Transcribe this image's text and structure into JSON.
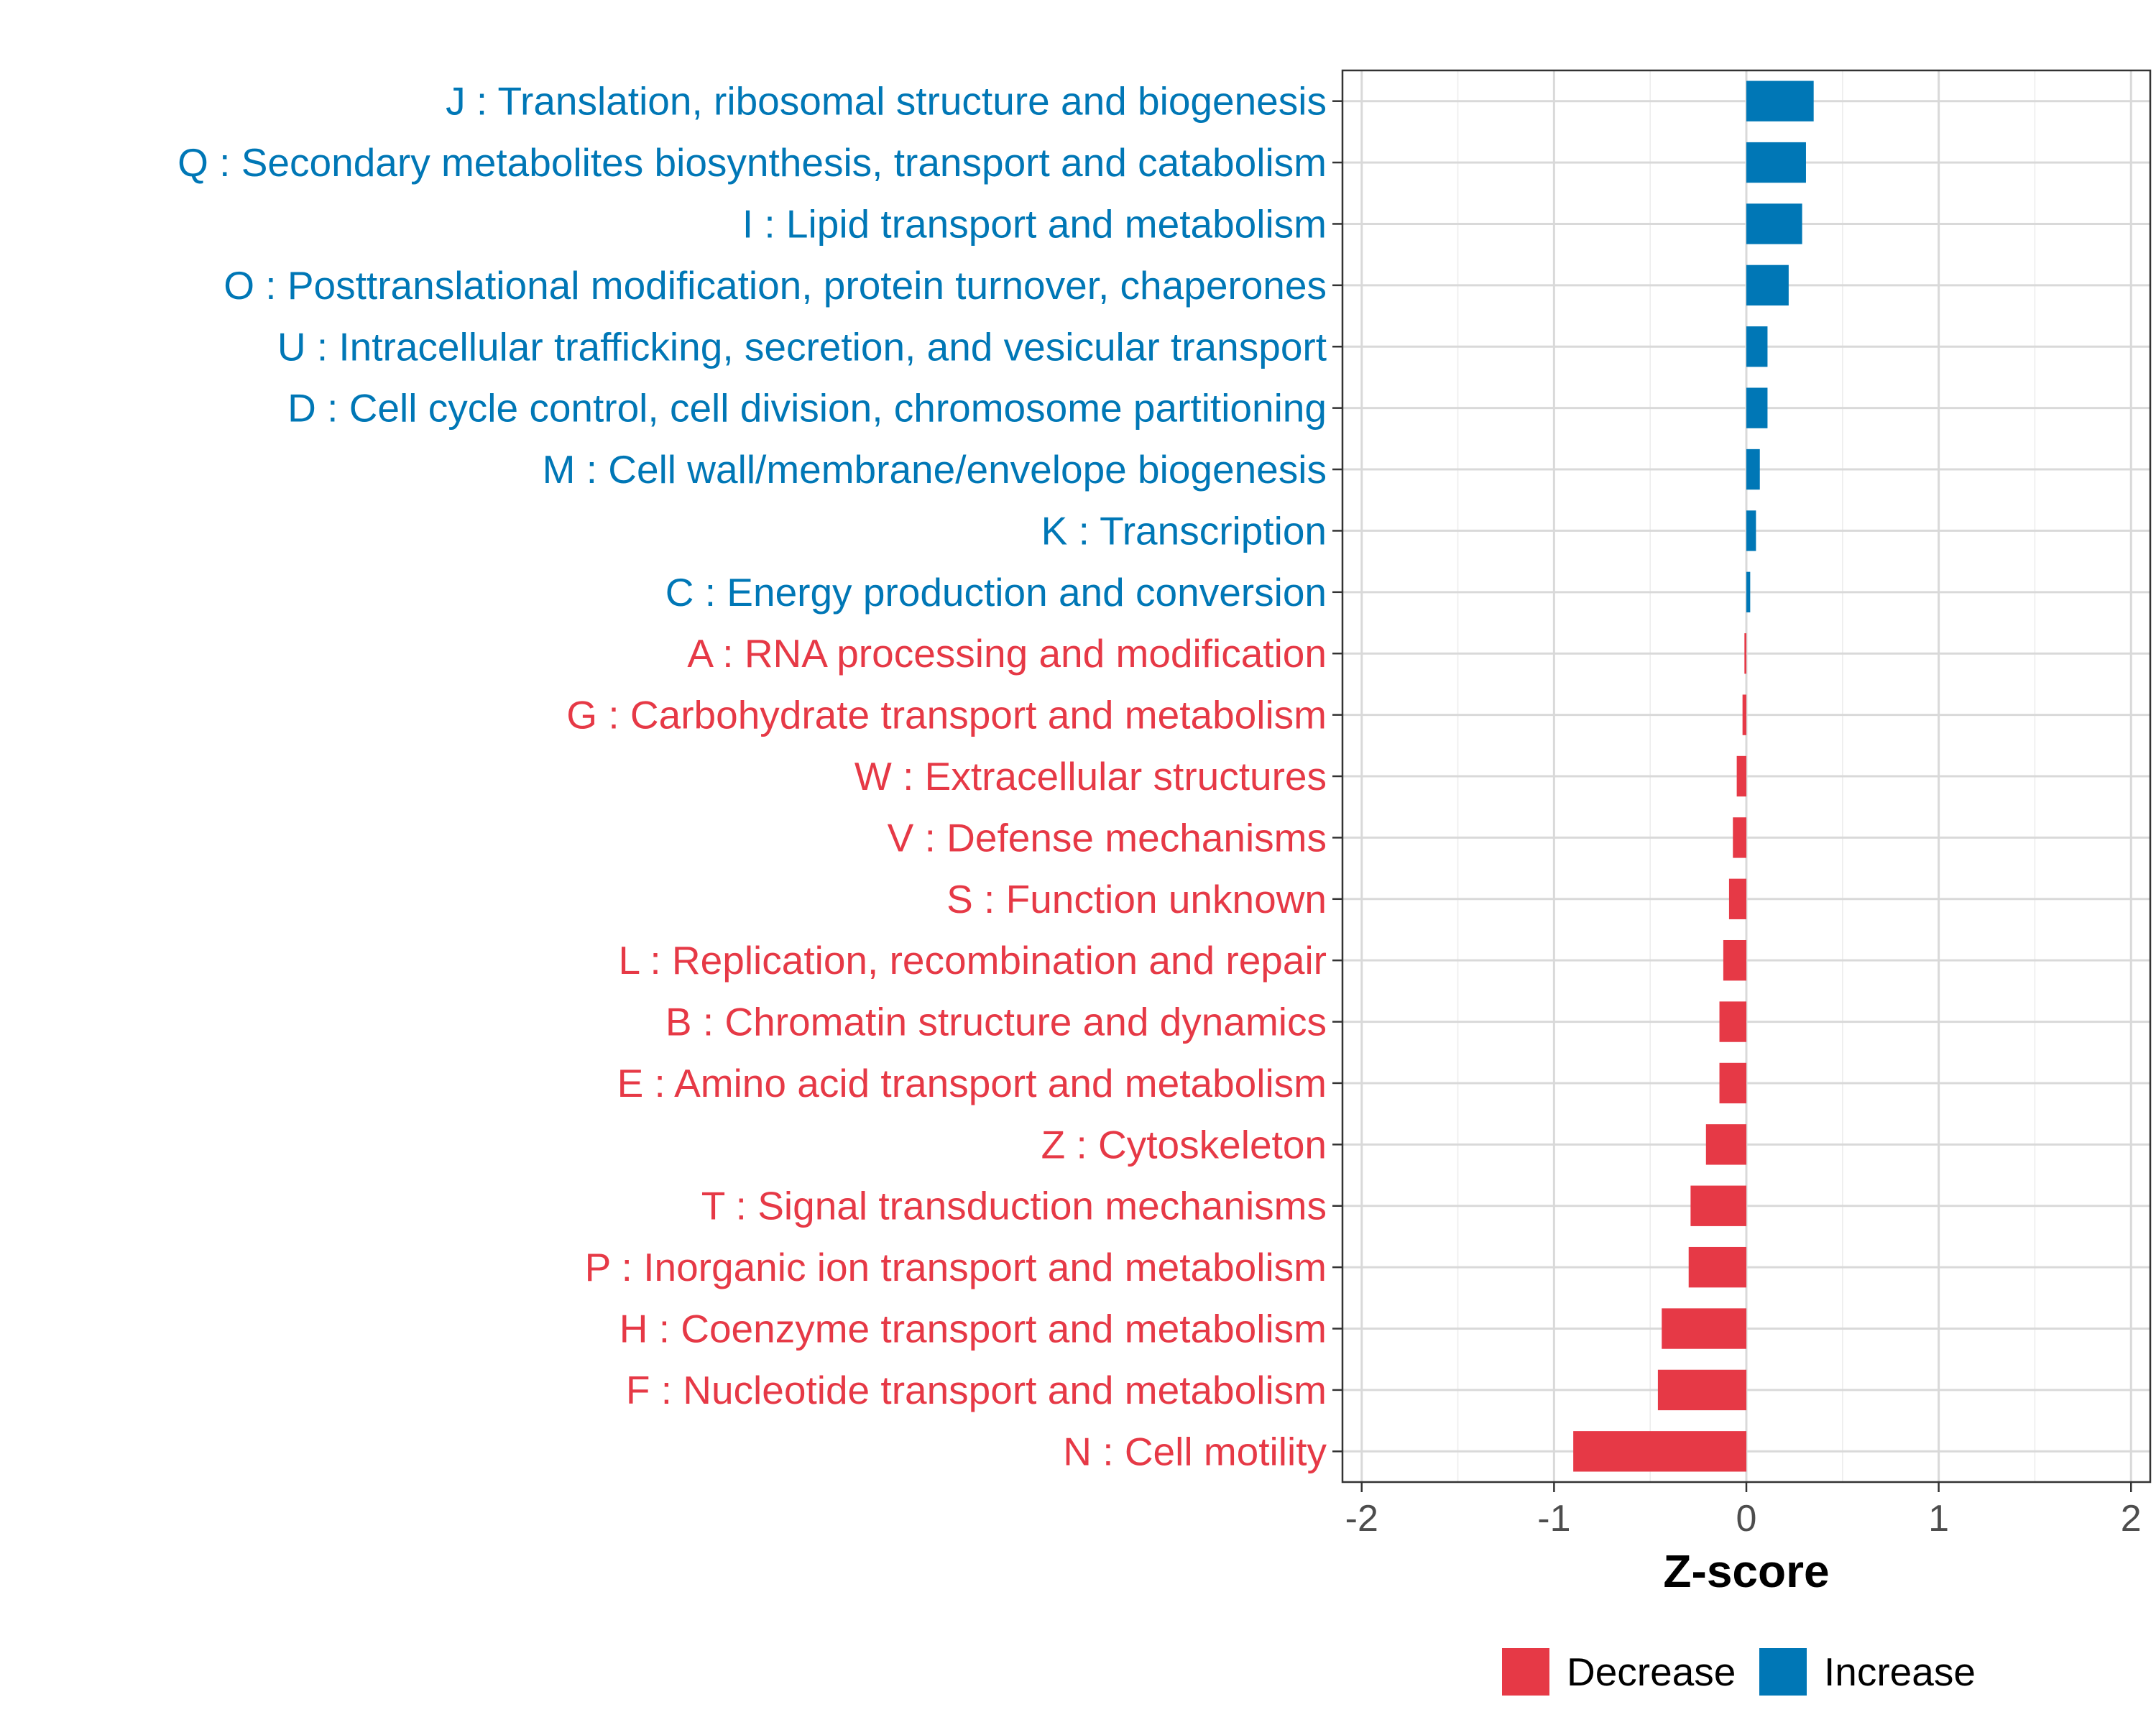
{
  "chart_data": {
    "type": "bar",
    "orientation": "horizontal",
    "categories": [
      "J : Translation, ribosomal structure and biogenesis",
      "Q : Secondary metabolites biosynthesis, transport and catabolism",
      "I : Lipid transport and metabolism",
      "O : Posttranslational modification, protein turnover, chaperones",
      "U : Intracellular trafficking, secretion, and vesicular transport",
      "D : Cell cycle control, cell division, chromosome partitioning",
      "M : Cell wall/membrane/envelope biogenesis",
      "K : Transcription",
      "C : Energy production and conversion",
      "A : RNA processing and modification",
      "G : Carbohydrate transport and metabolism",
      "W : Extracellular structures",
      "V : Defense mechanisms",
      "S : Function unknown",
      "L : Replication, recombination and repair",
      "B : Chromatin structure and dynamics",
      "E : Amino acid transport and metabolism",
      "Z : Cytoskeleton",
      "T : Signal transduction mechanisms",
      "P : Inorganic ion transport and metabolism",
      "H : Coenzyme transport and metabolism",
      "F : Nucleotide transport and metabolism",
      "N : Cell motility"
    ],
    "values": [
      0.35,
      0.31,
      0.29,
      0.22,
      0.11,
      0.11,
      0.07,
      0.05,
      0.02,
      -0.01,
      -0.02,
      -0.05,
      -0.07,
      -0.09,
      -0.12,
      -0.14,
      -0.14,
      -0.21,
      -0.29,
      -0.3,
      -0.44,
      -0.46,
      -0.9
    ],
    "groups": [
      "Increase",
      "Increase",
      "Increase",
      "Increase",
      "Increase",
      "Increase",
      "Increase",
      "Increase",
      "Increase",
      "Decrease",
      "Decrease",
      "Decrease",
      "Decrease",
      "Decrease",
      "Decrease",
      "Decrease",
      "Decrease",
      "Decrease",
      "Decrease",
      "Decrease",
      "Decrease",
      "Decrease",
      "Decrease"
    ],
    "xlabel": "Z-score",
    "ylabel": "",
    "xlim": [
      -2.1,
      2.1
    ],
    "xticks": [
      -2,
      -1,
      0,
      1,
      2
    ],
    "xtick_labels": [
      "-2",
      "-1",
      "0",
      "1",
      "2"
    ],
    "grid": true,
    "legend": {
      "position": "bottom",
      "entries": [
        {
          "label": "Decrease",
          "color": "#e63946"
        },
        {
          "label": "Increase",
          "color": "#0077b6"
        }
      ]
    },
    "colors": {
      "Decrease": "#e63946",
      "Increase": "#0077b6"
    }
  }
}
